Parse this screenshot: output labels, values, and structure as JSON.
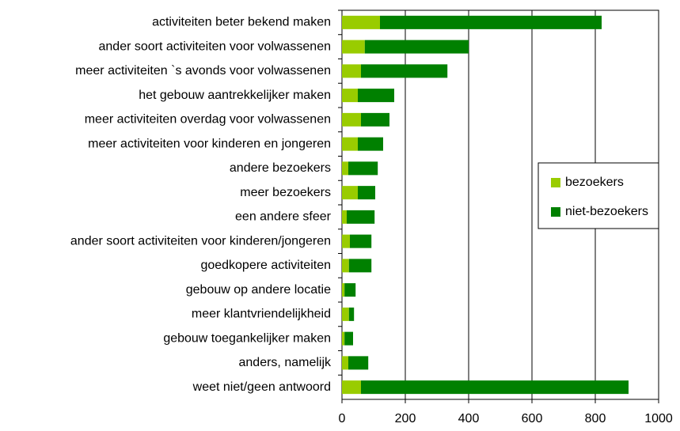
{
  "chart_data": {
    "type": "stacked-barh",
    "categories": [
      "activiteiten beter bekend maken",
      "ander soort activiteiten voor volwassenen",
      "meer activiteiten `s avonds voor volwassenen",
      "het gebouw aantrekkelijker maken",
      "meer activiteiten overdag voor volwassenen",
      "meer activiteiten voor kinderen en jongeren",
      "andere bezoekers",
      "meer bezoekers",
      "een andere sfeer",
      "ander soort activiteiten voor kinderen/jongeren",
      "goedkopere activiteiten",
      "gebouw op andere locatie",
      "meer klantvriendelijkheid",
      "gebouw toegankelijker maken",
      "anders, namelijk",
      "weet niet/geen antwoord"
    ],
    "series": [
      {
        "name": "bezoekers",
        "color": "#99cc00",
        "values": [
          120,
          72,
          60,
          50,
          60,
          50,
          20,
          50,
          15,
          25,
          22,
          8,
          22,
          8,
          20,
          60
        ]
      },
      {
        "name": "niet-bezoekers",
        "color": "#008000",
        "values": [
          700,
          328,
          273,
          115,
          90,
          80,
          93,
          55,
          88,
          68,
          71,
          35,
          16,
          27,
          63,
          845
        ]
      }
    ],
    "xlim": [
      0,
      1000
    ],
    "xticks": [
      0,
      200,
      400,
      600,
      800,
      1000
    ],
    "grid": true,
    "legend": "right"
  }
}
